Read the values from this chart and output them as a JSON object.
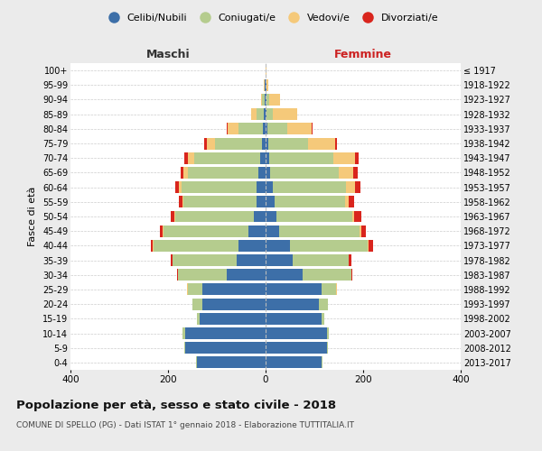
{
  "age_groups": [
    "0-4",
    "5-9",
    "10-14",
    "15-19",
    "20-24",
    "25-29",
    "30-34",
    "35-39",
    "40-44",
    "45-49",
    "50-54",
    "55-59",
    "60-64",
    "65-69",
    "70-74",
    "75-79",
    "80-84",
    "85-89",
    "90-94",
    "95-99",
    "100+"
  ],
  "birth_years": [
    "2013-2017",
    "2008-2012",
    "2003-2007",
    "1998-2002",
    "1993-1997",
    "1988-1992",
    "1983-1987",
    "1978-1982",
    "1973-1977",
    "1968-1972",
    "1963-1967",
    "1958-1962",
    "1953-1957",
    "1948-1952",
    "1943-1947",
    "1938-1942",
    "1933-1937",
    "1928-1932",
    "1923-1927",
    "1918-1922",
    "≤ 1917"
  ],
  "colors": {
    "celibi": "#3d6fa8",
    "coniugati": "#b5cc8e",
    "vedovi": "#f5c97a",
    "divorziati": "#d9251d"
  },
  "males": {
    "celibi": [
      140,
      165,
      165,
      135,
      130,
      130,
      80,
      60,
      55,
      35,
      25,
      18,
      18,
      15,
      12,
      8,
      5,
      3,
      2,
      1,
      0
    ],
    "coniugati": [
      2,
      2,
      5,
      5,
      20,
      30,
      100,
      130,
      175,
      175,
      160,
      150,
      155,
      145,
      135,
      95,
      50,
      15,
      5,
      1,
      0
    ],
    "vedovi": [
      0,
      0,
      0,
      0,
      0,
      2,
      0,
      0,
      1,
      1,
      2,
      3,
      5,
      8,
      12,
      18,
      22,
      12,
      3,
      1,
      0
    ],
    "divorziati": [
      0,
      0,
      0,
      0,
      0,
      0,
      2,
      4,
      5,
      5,
      8,
      7,
      8,
      6,
      8,
      5,
      3,
      0,
      0,
      0,
      0
    ]
  },
  "females": {
    "nubili": [
      115,
      125,
      125,
      115,
      110,
      115,
      75,
      55,
      50,
      28,
      22,
      18,
      15,
      10,
      8,
      5,
      3,
      2,
      2,
      1,
      0
    ],
    "coniugate": [
      2,
      2,
      5,
      5,
      18,
      30,
      100,
      115,
      160,
      165,
      155,
      145,
      150,
      140,
      130,
      82,
      42,
      12,
      5,
      1,
      0
    ],
    "vedove": [
      0,
      0,
      0,
      0,
      0,
      2,
      0,
      1,
      2,
      3,
      5,
      8,
      18,
      30,
      45,
      55,
      50,
      50,
      22,
      4,
      1
    ],
    "divorziate": [
      0,
      0,
      0,
      0,
      0,
      0,
      3,
      5,
      8,
      10,
      15,
      10,
      12,
      8,
      8,
      4,
      2,
      0,
      0,
      0,
      0
    ]
  },
  "xlim": 400,
  "title": "Popolazione per età, sesso e stato civile - 2018",
  "subtitle": "COMUNE DI SPELLO (PG) - Dati ISTAT 1° gennaio 2018 - Elaborazione TUTTITALIA.IT",
  "xlabel_left": "Maschi",
  "xlabel_right": "Femmine",
  "ylabel_left": "Fasce di età",
  "legend_labels": [
    "Celibi/Nubili",
    "Coniugati/e",
    "Vedovi/e",
    "Divorziati/e"
  ],
  "bg_color": "#ebebeb",
  "plot_bg": "#ffffff",
  "maschi_color": "#333333",
  "femmine_color": "#cc2222"
}
